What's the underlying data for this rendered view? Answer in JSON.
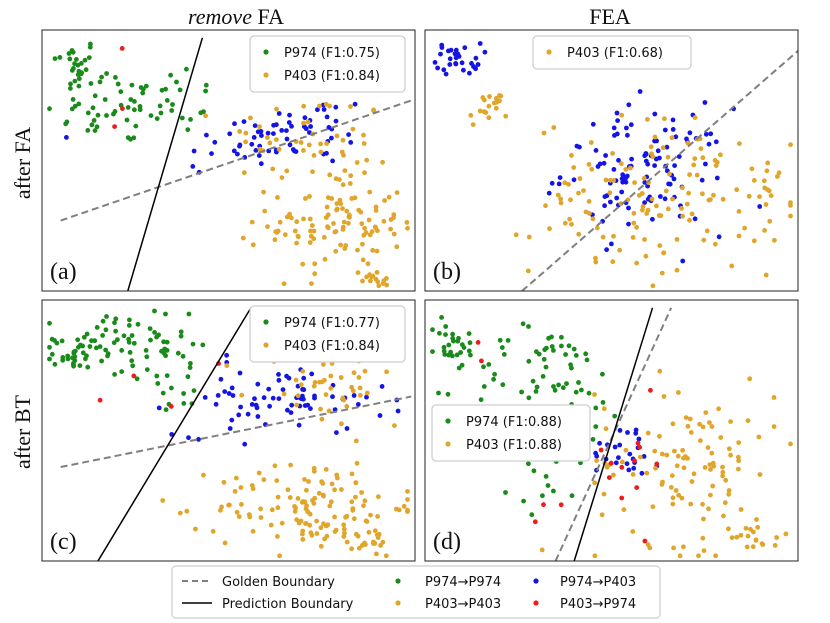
{
  "colors": {
    "p974_p974": "#1a8a1a",
    "p974_p403": "#1414e6",
    "p403_p403": "#e0a52a",
    "p403_p974": "#ee1c1c",
    "golden": "#7f7f7f",
    "prediction": "#000000"
  },
  "column_titles": {
    "left_italic": "remove",
    "left_rest": " FA",
    "right": "FEA"
  },
  "row_labels": {
    "top": "after FA",
    "bottom": "after BT"
  },
  "bottom_legend": {
    "golden": "Golden Boundary",
    "prediction": "Prediction Boundary",
    "p974_p974": "P974→P974",
    "p403_p403": "P403→P403",
    "p974_p403": "P974→P403",
    "p403_p974": "P403→P974"
  },
  "chart_data": [
    {
      "type": "scatter",
      "panel": "(a)",
      "row": "after FA",
      "column": "remove FA",
      "xlim": [
        0,
        10
      ],
      "ylim": [
        0,
        10
      ],
      "legend_position": "top-right",
      "legend": [
        "P974 (F1:0.75)",
        "P403 (F1:0.84)"
      ],
      "golden_boundary": [
        [
          0.5,
          2.7
        ],
        [
          9.9,
          7.3
        ]
      ],
      "prediction_boundary": [
        [
          2.3,
          0.0
        ],
        [
          4.3,
          9.7
        ]
      ],
      "clusters": [
        {
          "cls": "p974_p974",
          "cx": 0.9,
          "cy": 8.7,
          "sx": 0.3,
          "sy": 0.5,
          "n": 25
        },
        {
          "cls": "p974_p974",
          "cx": 2.1,
          "cy": 7.0,
          "sx": 1.0,
          "sy": 0.7,
          "n": 45
        },
        {
          "cls": "p974_p974",
          "cx": 3.4,
          "cy": 7.4,
          "sx": 0.7,
          "sy": 0.7,
          "n": 20
        },
        {
          "cls": "p974_p403",
          "cx": 5.5,
          "cy": 5.6,
          "sx": 1.2,
          "sy": 0.6,
          "n": 30
        },
        {
          "cls": "p974_p403",
          "cx": 7.1,
          "cy": 6.2,
          "sx": 0.9,
          "sy": 0.7,
          "n": 35
        },
        {
          "cls": "p403_p403",
          "cx": 7.1,
          "cy": 5.8,
          "sx": 1.1,
          "sy": 0.9,
          "n": 45
        },
        {
          "cls": "p403_p403",
          "cx": 7.9,
          "cy": 2.6,
          "sx": 0.9,
          "sy": 1.0,
          "n": 110
        },
        {
          "cls": "p403_p403",
          "cx": 9.0,
          "cy": 0.6,
          "sx": 0.3,
          "sy": 0.3,
          "n": 15
        },
        {
          "cls": "p403_p974",
          "cx": 2.1,
          "cy": 9.3,
          "sx": 0.05,
          "sy": 0.05,
          "n": 1
        },
        {
          "cls": "p403_p974",
          "cx": 2.2,
          "cy": 6.9,
          "sx": 0.05,
          "sy": 0.05,
          "n": 1
        },
        {
          "cls": "p403_p974",
          "cx": 1.9,
          "cy": 6.3,
          "sx": 0.05,
          "sy": 0.05,
          "n": 1
        }
      ]
    },
    {
      "type": "scatter",
      "panel": "(b)",
      "row": "after FA",
      "column": "FEA",
      "xlim": [
        0,
        10
      ],
      "ylim": [
        0,
        10
      ],
      "legend_position": "top-center",
      "legend": [
        "P403 (F1:0.68)"
      ],
      "golden_boundary": [
        [
          2.6,
          0.0
        ],
        [
          10.0,
          9.2
        ]
      ],
      "prediction_boundary": null,
      "clusters": [
        {
          "cls": "p974_p403",
          "cx": 0.9,
          "cy": 8.9,
          "sx": 0.3,
          "sy": 0.3,
          "n": 30
        },
        {
          "cls": "p403_p403",
          "cx": 1.7,
          "cy": 7.0,
          "sx": 0.25,
          "sy": 0.35,
          "n": 18
        },
        {
          "cls": "p974_p403",
          "cx": 5.9,
          "cy": 4.6,
          "sx": 1.1,
          "sy": 1.2,
          "n": 110
        },
        {
          "cls": "p403_p403",
          "cx": 6.1,
          "cy": 3.6,
          "sx": 1.6,
          "sy": 1.5,
          "n": 130
        },
        {
          "cls": "p403_p403",
          "cx": 9.3,
          "cy": 3.7,
          "sx": 0.3,
          "sy": 0.8,
          "n": 15
        }
      ]
    },
    {
      "type": "scatter",
      "panel": "(c)",
      "row": "after BT",
      "column": "remove FA",
      "xlim": [
        0,
        10
      ],
      "ylim": [
        0,
        10
      ],
      "legend_position": "top-right",
      "legend": [
        "P974 (F1:0.77)",
        "P403 (F1:0.84)"
      ],
      "golden_boundary": [
        [
          0.5,
          3.6
        ],
        [
          9.9,
          6.3
        ]
      ],
      "prediction_boundary": [
        [
          1.5,
          0.0
        ],
        [
          5.6,
          9.7
        ]
      ],
      "clusters": [
        {
          "cls": "p974_p974",
          "cx": 0.9,
          "cy": 8.0,
          "sx": 0.3,
          "sy": 0.3,
          "n": 30
        },
        {
          "cls": "p974_p974",
          "cx": 2.1,
          "cy": 8.2,
          "sx": 0.9,
          "sy": 0.8,
          "n": 55
        },
        {
          "cls": "p974_p974",
          "cx": 3.6,
          "cy": 7.0,
          "sx": 0.6,
          "sy": 0.6,
          "n": 20
        },
        {
          "cls": "p974_p403",
          "cx": 6.4,
          "cy": 6.2,
          "sx": 1.4,
          "sy": 0.7,
          "n": 75
        },
        {
          "cls": "p403_p403",
          "cx": 7.5,
          "cy": 6.7,
          "sx": 1.0,
          "sy": 0.8,
          "n": 40
        },
        {
          "cls": "p403_p403",
          "cx": 7.3,
          "cy": 2.1,
          "sx": 1.3,
          "sy": 0.9,
          "n": 130
        },
        {
          "cls": "p403_p403",
          "cx": 8.8,
          "cy": 0.6,
          "sx": 0.3,
          "sy": 0.3,
          "n": 15
        },
        {
          "cls": "p403_p974",
          "cx": 4.7,
          "cy": 7.6,
          "sx": 0.05,
          "sy": 0.05,
          "n": 1
        },
        {
          "cls": "p403_p974",
          "cx": 2.4,
          "cy": 7.1,
          "sx": 0.05,
          "sy": 0.05,
          "n": 1
        },
        {
          "cls": "p403_p974",
          "cx": 1.5,
          "cy": 6.2,
          "sx": 0.05,
          "sy": 0.05,
          "n": 1
        },
        {
          "cls": "p403_p974",
          "cx": 3.4,
          "cy": 5.9,
          "sx": 0.05,
          "sy": 0.05,
          "n": 1
        }
      ]
    },
    {
      "type": "scatter",
      "panel": "(d)",
      "row": "after BT",
      "column": "FEA",
      "xlim": [
        0,
        10
      ],
      "ylim": [
        0,
        10
      ],
      "legend_position": "center-left",
      "legend": [
        "P974 (F1:0.88)",
        "P403 (F1:0.88)"
      ],
      "golden_boundary": [
        [
          3.5,
          0.0
        ],
        [
          6.6,
          9.7
        ]
      ],
      "prediction_boundary": [
        [
          4.0,
          0.0
        ],
        [
          6.1,
          9.7
        ]
      ],
      "clusters": [
        {
          "cls": "p974_p974",
          "cx": 0.8,
          "cy": 8.3,
          "sx": 0.3,
          "sy": 0.5,
          "n": 28
        },
        {
          "cls": "p974_p974",
          "cx": 3.3,
          "cy": 6.6,
          "sx": 1.1,
          "sy": 1.2,
          "n": 85
        },
        {
          "cls": "p974_p974",
          "cx": 3.2,
          "cy": 3.5,
          "sx": 0.6,
          "sy": 0.9,
          "n": 20
        },
        {
          "cls": "p974_p403",
          "cx": 5.4,
          "cy": 4.3,
          "sx": 0.5,
          "sy": 0.6,
          "n": 25
        },
        {
          "cls": "p403_p403",
          "cx": 7.0,
          "cy": 3.8,
          "sx": 1.2,
          "sy": 1.6,
          "n": 110
        },
        {
          "cls": "p403_p403",
          "cx": 9.0,
          "cy": 0.9,
          "sx": 0.4,
          "sy": 0.3,
          "n": 18
        },
        {
          "cls": "p403_p974",
          "cx": 5.5,
          "cy": 3.7,
          "sx": 0.5,
          "sy": 1.1,
          "n": 12
        },
        {
          "cls": "p403_p974",
          "cx": 1.6,
          "cy": 8.2,
          "sx": 0.2,
          "sy": 0.3,
          "n": 2
        },
        {
          "cls": "p403_p974",
          "cx": 3.2,
          "cy": 2.2,
          "sx": 0.3,
          "sy": 0.3,
          "n": 3
        }
      ]
    }
  ]
}
